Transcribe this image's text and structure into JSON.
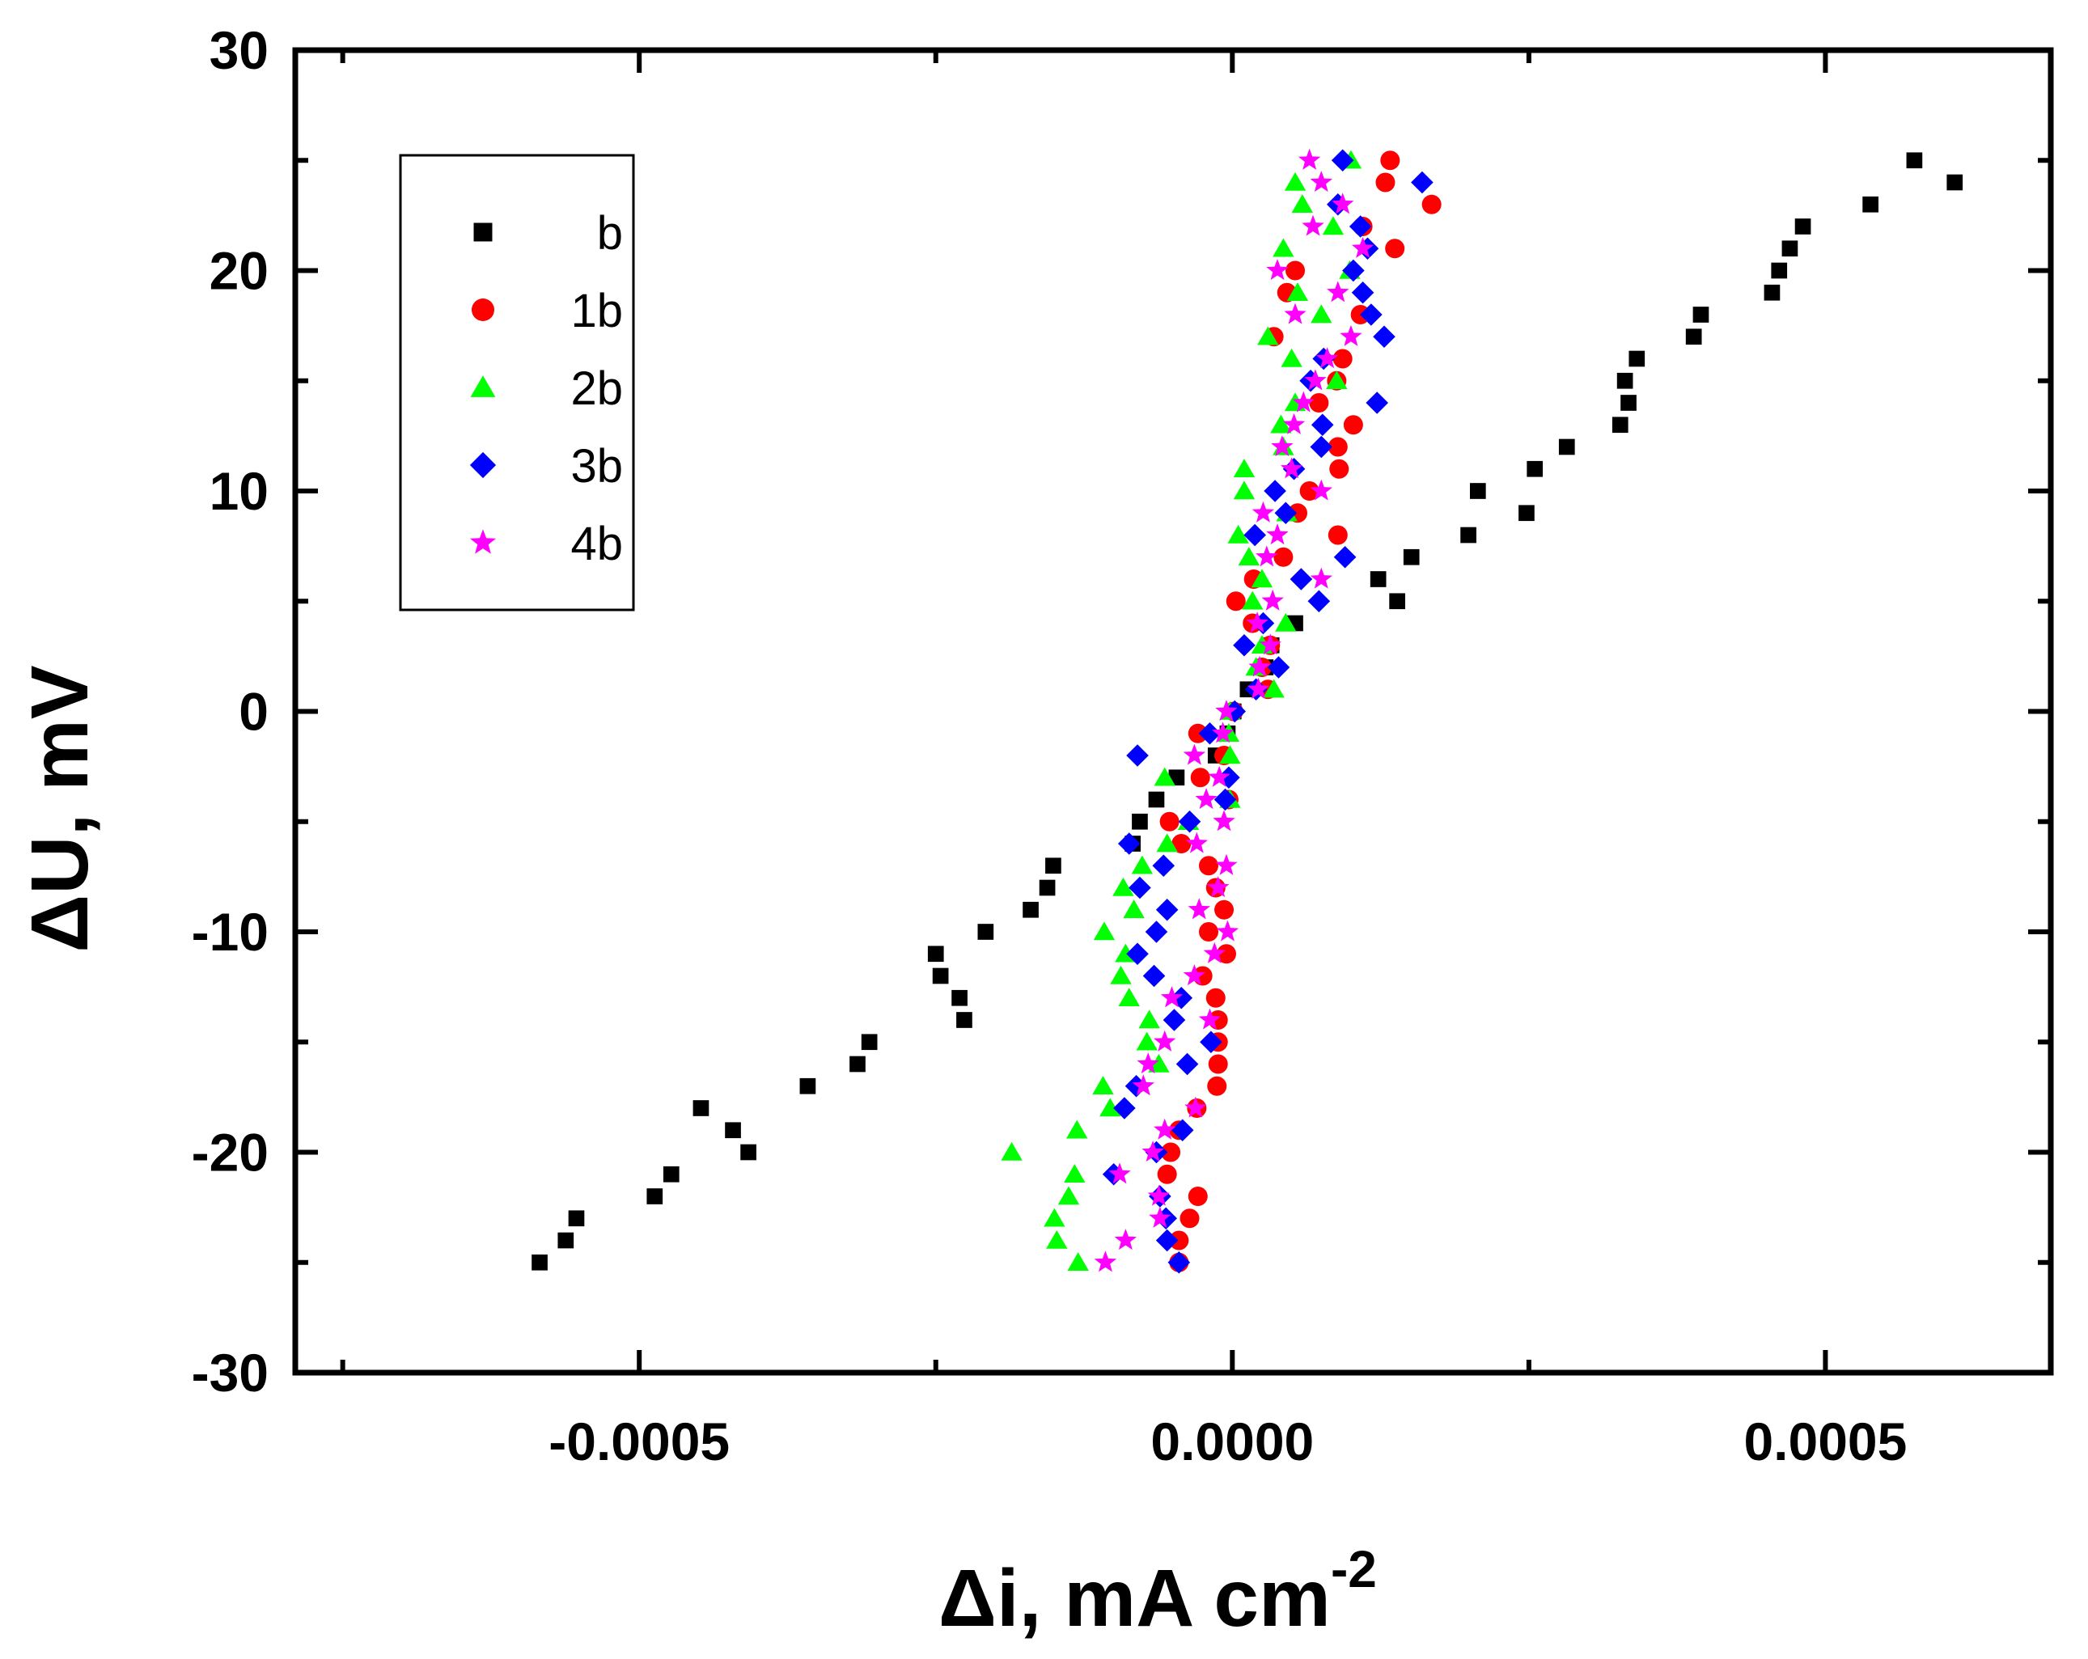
{
  "chart_data": {
    "type": "scatter",
    "title": "",
    "xlabel": "Δi, mA cm",
    "xlabel_superscript": "-2",
    "ylabel": "ΔU, mV",
    "xlim": [
      -0.00079,
      0.00069
    ],
    "ylim": [
      -30,
      30
    ],
    "x_ticks": [
      -0.0005,
      0.0,
      0.0005
    ],
    "x_tick_labels": [
      "-0.0005",
      "0.0000",
      "0.0005"
    ],
    "y_ticks": [
      -30,
      -20,
      -10,
      0,
      10,
      20,
      30
    ],
    "y_tick_labels": [
      "-30",
      "-20",
      "-10",
      "0",
      "10",
      "20",
      "30"
    ],
    "grid": false,
    "legend_position": "top-left",
    "series": [
      {
        "name": "b",
        "marker": "square",
        "color": "#000000",
        "points": [
          [
            -0.000584,
            -25
          ],
          [
            -0.000562,
            -24
          ],
          [
            -0.000553,
            -23
          ],
          [
            -0.000487,
            -22
          ],
          [
            -0.000473,
            -21
          ],
          [
            -0.000408,
            -20
          ],
          [
            -0.000421,
            -19
          ],
          [
            -0.000448,
            -18
          ],
          [
            -0.000358,
            -17
          ],
          [
            -0.000316,
            -16
          ],
          [
            -0.000306,
            -15
          ],
          [
            -0.000226,
            -14
          ],
          [
            -0.00023,
            -13
          ],
          [
            -0.000246,
            -12
          ],
          [
            -0.00025,
            -11
          ],
          [
            -0.000208,
            -10
          ],
          [
            -0.00017,
            -9
          ],
          [
            -0.000156,
            -8
          ],
          [
            -0.000151,
            -7
          ],
          [
            -8.4e-05,
            -6
          ],
          [
            -7.8e-05,
            -5
          ],
          [
            -6.4e-05,
            -4
          ],
          [
            -4.7e-05,
            -3
          ],
          [
            -1.4e-05,
            -2
          ],
          [
            -4e-06,
            -1
          ],
          [
            1e-06,
            0
          ],
          [
            1.3e-05,
            1
          ],
          [
            2.8e-05,
            2
          ],
          [
            3.3e-05,
            3
          ],
          [
            5.3e-05,
            4
          ],
          [
            0.000139,
            5
          ],
          [
            0.000123,
            6
          ],
          [
            0.000151,
            7
          ],
          [
            0.000199,
            8
          ],
          [
            0.000248,
            9
          ],
          [
            0.000207,
            10
          ],
          [
            0.000255,
            11
          ],
          [
            0.000282,
            12
          ],
          [
            0.000327,
            13
          ],
          [
            0.000334,
            14
          ],
          [
            0.000331,
            15
          ],
          [
            0.000341,
            16
          ],
          [
            0.000389,
            17
          ],
          [
            0.000395,
            18
          ],
          [
            0.000455,
            19
          ],
          [
            0.000461,
            20
          ],
          [
            0.00047,
            21
          ],
          [
            0.000481,
            22
          ],
          [
            0.000538,
            23
          ],
          [
            0.000609,
            24
          ],
          [
            0.000575,
            25
          ]
        ]
      },
      {
        "name": "1b",
        "marker": "circle",
        "color": "#ff0000",
        "points": [
          [
            -4.5e-05,
            -25
          ],
          [
            -4.5e-05,
            -24
          ],
          [
            -3.6e-05,
            -23
          ],
          [
            -2.9e-05,
            -22
          ],
          [
            -5.5e-05,
            -21
          ],
          [
            -5.2e-05,
            -20
          ],
          [
            -4.5e-05,
            -19
          ],
          [
            -3e-05,
            -18
          ],
          [
            -1.3e-05,
            -17
          ],
          [
            -1.2e-05,
            -16
          ],
          [
            -1.2e-05,
            -15
          ],
          [
            -1.2e-05,
            -14
          ],
          [
            -1.4e-05,
            -13
          ],
          [
            -2.5e-05,
            -12
          ],
          [
            -5e-06,
            -11
          ],
          [
            -2e-05,
            -10
          ],
          [
            -7e-06,
            -9
          ],
          [
            -1.4e-05,
            -8
          ],
          [
            -2e-05,
            -7
          ],
          [
            -4.3e-05,
            -6
          ],
          [
            -5.3e-05,
            -5
          ],
          [
            -3e-06,
            -4
          ],
          [
            -2.7e-05,
            -3
          ],
          [
            -7e-06,
            -2
          ],
          [
            -2.9e-05,
            -1
          ],
          [
            1e-06,
            0
          ],
          [
            3e-05,
            1
          ],
          [
            2.5e-05,
            2
          ],
          [
            3.2e-05,
            3
          ],
          [
            1.7e-05,
            4
          ],
          [
            3e-06,
            5
          ],
          [
            1.8e-05,
            6
          ],
          [
            4.3e-05,
            7
          ],
          [
            8.9e-05,
            8
          ],
          [
            5.5e-05,
            9
          ],
          [
            6.5e-05,
            10
          ],
          [
            9e-05,
            11
          ],
          [
            8.9e-05,
            12
          ],
          [
            0.000102,
            13
          ],
          [
            7.3e-05,
            14
          ],
          [
            8.8e-05,
            15
          ],
          [
            9.3e-05,
            16
          ],
          [
            3.5e-05,
            17
          ],
          [
            0.000108,
            18
          ],
          [
            4.6e-05,
            19
          ],
          [
            5.3e-05,
            20
          ],
          [
            0.000137,
            21
          ],
          [
            0.00011,
            22
          ],
          [
            0.000168,
            23
          ],
          [
            0.000129,
            24
          ],
          [
            0.000133,
            25
          ]
        ]
      },
      {
        "name": "2b",
        "marker": "triangle",
        "color": "#00ff00",
        "points": [
          [
            -0.00013,
            -25
          ],
          [
            -0.000148,
            -24
          ],
          [
            -0.00015,
            -23
          ],
          [
            -0.000138,
            -22
          ],
          [
            -0.000133,
            -21
          ],
          [
            -0.000186,
            -20
          ],
          [
            -0.000131,
            -19
          ],
          [
            -0.000103,
            -18
          ],
          [
            -0.000109,
            -17
          ],
          [
            -6.2e-05,
            -16
          ],
          [
            -7.2e-05,
            -15
          ],
          [
            -7e-05,
            -14
          ],
          [
            -8.7e-05,
            -13
          ],
          [
            -9.4e-05,
            -12
          ],
          [
            -9e-05,
            -11
          ],
          [
            -0.000108,
            -10
          ],
          [
            -8.3e-05,
            -9
          ],
          [
            -9.2e-05,
            -8
          ],
          [
            -7.6e-05,
            -7
          ],
          [
            -5.5e-05,
            -6
          ],
          [
            -3.7e-05,
            -5
          ],
          [
            -2e-06,
            -4
          ],
          [
            -5.7e-05,
            -3
          ],
          [
            -2e-06,
            -2
          ],
          [
            -3e-06,
            -1
          ],
          [
            -2e-06,
            0
          ],
          [
            3.5e-05,
            1
          ],
          [
            2e-05,
            2
          ],
          [
            2.5e-05,
            3
          ],
          [
            4.5e-05,
            4
          ],
          [
            1.7e-05,
            5
          ],
          [
            2.5e-05,
            6
          ],
          [
            1.4e-05,
            7
          ],
          [
            5e-06,
            8
          ],
          [
            4.6e-05,
            9
          ],
          [
            1e-05,
            10
          ],
          [
            1e-05,
            11
          ],
          [
            4.3e-05,
            12
          ],
          [
            4.1e-05,
            13
          ],
          [
            5.3e-05,
            14
          ],
          [
            8.8e-05,
            15
          ],
          [
            5e-05,
            16
          ],
          [
            3e-05,
            17
          ],
          [
            7.5e-05,
            18
          ],
          [
            5.5e-05,
            19
          ],
          [
            9.9e-05,
            20
          ],
          [
            4.3e-05,
            21
          ],
          [
            8.5e-05,
            22
          ],
          [
            5.9e-05,
            23
          ],
          [
            5.3e-05,
            24
          ],
          [
            0.0001,
            25
          ]
        ]
      },
      {
        "name": "3b",
        "marker": "diamond",
        "color": "#0000ff",
        "points": [
          [
            -4.5e-05,
            -25
          ],
          [
            -5.5e-05,
            -24
          ],
          [
            -5.6e-05,
            -23
          ],
          [
            -6.1e-05,
            -22
          ],
          [
            -0.0001,
            -21
          ],
          [
            -6.4e-05,
            -20
          ],
          [
            -4.2e-05,
            -19
          ],
          [
            -9.1e-05,
            -18
          ],
          [
            -8.1e-05,
            -17
          ],
          [
            -3.8e-05,
            -16
          ],
          [
            -1.8e-05,
            -15
          ],
          [
            -4.9e-05,
            -14
          ],
          [
            -4.3e-05,
            -13
          ],
          [
            -6.6e-05,
            -12
          ],
          [
            -8e-05,
            -11
          ],
          [
            -6.4e-05,
            -10
          ],
          [
            -5.5e-05,
            -9
          ],
          [
            -7.8e-05,
            -8
          ],
          [
            -5.8e-05,
            -7
          ],
          [
            -8.7e-05,
            -6
          ],
          [
            -3.6e-05,
            -5
          ],
          [
            -6e-06,
            -4
          ],
          [
            -3e-06,
            -3
          ],
          [
            -8e-05,
            -2
          ],
          [
            -1.9e-05,
            -1
          ],
          [
            2e-06,
            0
          ],
          [
            2e-05,
            1
          ],
          [
            3.9e-05,
            2
          ],
          [
            1e-05,
            3
          ],
          [
            2.6e-05,
            4
          ],
          [
            7.3e-05,
            5
          ],
          [
            5.8e-05,
            6
          ],
          [
            9.5e-05,
            7
          ],
          [
            1.9e-05,
            8
          ],
          [
            4.5e-05,
            9
          ],
          [
            3.6e-05,
            10
          ],
          [
            5.2e-05,
            11
          ],
          [
            7.5e-05,
            12
          ],
          [
            7.6e-05,
            13
          ],
          [
            0.000122,
            14
          ],
          [
            6.6e-05,
            15
          ],
          [
            7.7e-05,
            16
          ],
          [
            0.000128,
            17
          ],
          [
            0.000117,
            18
          ],
          [
            0.00011,
            19
          ],
          [
            0.000102,
            20
          ],
          [
            0.000114,
            21
          ],
          [
            0.000108,
            22
          ],
          [
            8.9e-05,
            23
          ],
          [
            0.00016,
            24
          ],
          [
            9.3e-05,
            25
          ]
        ]
      },
      {
        "name": "4b",
        "marker": "star",
        "color": "#ff00ff",
        "points": [
          [
            -0.000107,
            -25
          ],
          [
            -9e-05,
            -24
          ],
          [
            -6.1e-05,
            -23
          ],
          [
            -6.2e-05,
            -22
          ],
          [
            -9.5e-05,
            -21
          ],
          [
            -6.7e-05,
            -20
          ],
          [
            -5.7e-05,
            -19
          ],
          [
            -3.1e-05,
            -18
          ],
          [
            -7.5e-05,
            -17
          ],
          [
            -7.1e-05,
            -16
          ],
          [
            -5.7e-05,
            -15
          ],
          [
            -1.9e-05,
            -14
          ],
          [
            -5.1e-05,
            -13
          ],
          [
            -3.2e-05,
            -12
          ],
          [
            -1.5e-05,
            -11
          ],
          [
            -4e-06,
            -10
          ],
          [
            -2.8e-05,
            -9
          ],
          [
            -1.2e-05,
            -8
          ],
          [
            -5e-06,
            -7
          ],
          [
            -3e-05,
            -6
          ],
          [
            -7e-06,
            -5
          ],
          [
            -2.2e-05,
            -4
          ],
          [
            -1.1e-05,
            -3
          ],
          [
            -3.2e-05,
            -2
          ],
          [
            -8e-06,
            -1
          ],
          [
            -5e-06,
            0
          ],
          [
            2.2e-05,
            1
          ],
          [
            2.3e-05,
            2
          ],
          [
            3.2e-05,
            3
          ],
          [
            2.1e-05,
            4
          ],
          [
            3.4e-05,
            5
          ],
          [
            7.5e-05,
            6
          ],
          [
            2.9e-05,
            7
          ],
          [
            3.8e-05,
            8
          ],
          [
            2.6e-05,
            9
          ],
          [
            7.5e-05,
            10
          ],
          [
            5e-05,
            11
          ],
          [
            4.2e-05,
            12
          ],
          [
            5.2e-05,
            13
          ],
          [
            6e-05,
            14
          ],
          [
            7e-05,
            15
          ],
          [
            8e-05,
            16
          ],
          [
            0.0001,
            17
          ],
          [
            5.3e-05,
            18
          ],
          [
            8.9e-05,
            19
          ],
          [
            3.8e-05,
            20
          ],
          [
            0.00011,
            21
          ],
          [
            6.8e-05,
            22
          ],
          [
            9.3e-05,
            23
          ],
          [
            7.5e-05,
            24
          ],
          [
            6.5e-05,
            25
          ]
        ]
      }
    ]
  }
}
